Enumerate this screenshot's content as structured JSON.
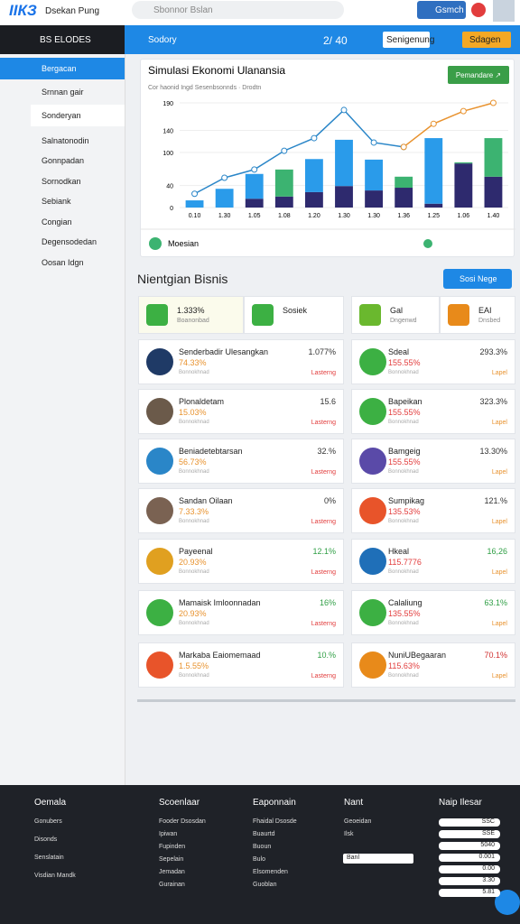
{
  "topbar": {
    "logo": "ІІКЗ",
    "app": "Dsekan Pung",
    "search": "Sbonnor Bslan",
    "button": "Gsmch"
  },
  "menu": {
    "title": "BS ELODES",
    "items": [
      "Bergacan",
      "Srnnan gair",
      "Sonderyan",
      "Salnatonodin",
      "Gonnpadan",
      "Sornodkan",
      "Sebiank",
      "Congian",
      "Degensodedan",
      "Oosan Idgn"
    ]
  },
  "bluebar": {
    "title": "Sodory",
    "count": "2/ 40",
    "button": "Senigenung",
    "action": "Sdagen"
  },
  "chart_data": {
    "type": "bar",
    "title": "Simulasi Ekonomi Ulanansia",
    "subtitle": "Cor haonid Ingd Sesenbsonnds · Drodtn",
    "button": "Pemandare ↗",
    "legend": "Moesian",
    "categories": [
      "0.10",
      "1.30",
      "1.05",
      "1.08",
      "1.20",
      "1.30",
      "1.30",
      "1.36",
      "1.25",
      "1.06",
      "1.40"
    ],
    "series": [
      {
        "color": "#2e2a6e",
        "values": [
          0,
          0,
          16,
          20,
          28,
          39,
          31,
          36,
          7,
          80,
          56
        ]
      },
      {
        "colors": [
          "#2a9bea",
          "#2a9bea",
          "#2a9bea",
          "#3cb371",
          "#2a9bea",
          "#2a9bea",
          "#2a9bea",
          "#3cb371",
          "#2a9bea",
          "#3cb371",
          "#3cb371"
        ],
        "values": [
          13,
          34,
          45,
          49,
          60,
          84,
          56,
          20,
          119,
          2,
          70
        ]
      }
    ],
    "lines": [
      {
        "color": "#2a86c8",
        "values": [
          25,
          54,
          69,
          103,
          126,
          177,
          118,
          110,
          null,
          null,
          null
        ]
      },
      {
        "color": "#e8922e",
        "values": [
          null,
          null,
          null,
          null,
          null,
          null,
          null,
          110,
          152,
          175,
          190
        ]
      }
    ],
    "ylim": [
      0,
      190
    ],
    "yticks": [
      0,
      40,
      100,
      140,
      190
    ],
    "grid": true
  },
  "business": {
    "title": "Nientgian Bisnis",
    "button": "Sosi Nege",
    "top": [
      {
        "name": "1.333%",
        "sub": "Boanonbad"
      },
      {
        "name": "Sosiek",
        "sub": ""
      },
      {
        "name": "Gal",
        "sub": "Dngenwd"
      },
      {
        "name": "EAI",
        "sub": "Dnsbed"
      }
    ],
    "left": [
      {
        "name": "Senderbadir Ulesangkan",
        "pct": "74.33%",
        "value": "1.077%",
        "icon": "#1f3a66",
        "vcolor": "#333"
      },
      {
        "name": "Plonaldetam",
        "pct": "15.03%",
        "value": "15.6",
        "icon": "#6b5a4a",
        "vcolor": "#333"
      },
      {
        "name": "Beniadetebtarsan",
        "pct": "56.73%",
        "value": "32.%",
        "icon": "#2a86c8",
        "vcolor": "#333"
      },
      {
        "name": "Sandan Oilaan",
        "pct": "7.33.3%",
        "value": "0%",
        "icon": "#7a6252",
        "vcolor": "#333"
      },
      {
        "name": "Payeenal",
        "pct": "20.93%",
        "value": "12.1%",
        "icon": "#e0a020",
        "vcolor": "#2e9e44"
      },
      {
        "name": "Mamaisk Imloonnadan",
        "pct": "20.93%",
        "value": "16%",
        "icon": "#3cb043",
        "vcolor": "#2e9e44"
      },
      {
        "name": "Markaba Eaiomemaad",
        "pct": "1.5.55%",
        "value": "10.%",
        "icon": "#e8542a",
        "vcolor": "#2e9e44"
      }
    ],
    "right": [
      {
        "name": "Sdeal",
        "pct": "155.55%",
        "value": "293.3%",
        "icon": "#3cb043",
        "vcolor": "#333"
      },
      {
        "name": "Bapeikan",
        "pct": "155.55%",
        "value": "323.3%",
        "icon": "#3cb043",
        "vcolor": "#333"
      },
      {
        "name": "Bamgeig",
        "pct": "155.55%",
        "value": "13.30%",
        "icon": "#5a4aa8",
        "vcolor": "#333"
      },
      {
        "name": "Sumpikag",
        "pct": "135.53%",
        "value": "121.%",
        "icon": "#e8542a",
        "vcolor": "#333"
      },
      {
        "name": "Hkeal",
        "pct": "115.7776",
        "value": "16,26",
        "icon": "#1f6fb8",
        "vcolor": "#2e9e44"
      },
      {
        "name": "Calaliung",
        "pct": "135.55%",
        "value": "63.1%",
        "icon": "#3cb043",
        "vcolor": "#2e9e44"
      },
      {
        "name": "NuniUBegaaran",
        "pct": "115.63%",
        "value": "70.1%",
        "icon": "#e88a1a",
        "vcolor": "#d03030"
      }
    ],
    "sub": "Bonnokhnad",
    "link": "Lasterng",
    "tag": "Lapel"
  },
  "footer": {
    "columns": [
      {
        "title": "Oemala",
        "items": [
          "Gonubers",
          "Disonds",
          "Senslatain",
          "Visdian Mandk"
        ]
      },
      {
        "title": "Scoenlaar",
        "items": [
          "Fooder Dsosdan",
          "Ipiwan",
          "Fupinden",
          "Sepelain",
          "Jemadan",
          "Gurainan"
        ]
      },
      {
        "title": "Eaponnain",
        "items": [
          "Fhaidal Dsosde",
          "Buaurtd",
          "Buoun",
          "Bulo",
          "Elsomenden",
          "Guoblan"
        ]
      },
      {
        "title": "Nant",
        "items": [
          "Geoeidan",
          "Ilsk"
        ]
      }
    ],
    "input": "Banl",
    "rates_title": "Naip Ilesar",
    "rates": [
      "SSC",
      "SSE",
      "5040",
      "0.001",
      "0.00",
      "3.30",
      "5.81"
    ]
  }
}
